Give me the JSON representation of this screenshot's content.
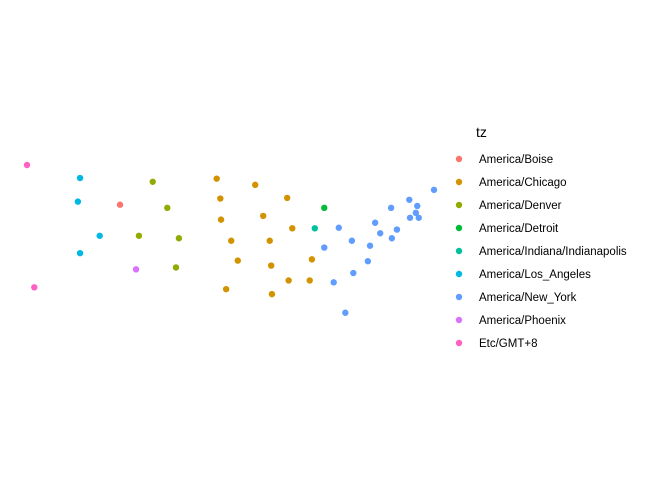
{
  "chart_data": {
    "type": "scatter",
    "title": "",
    "xlabel": "",
    "ylabel": "",
    "grid": false,
    "axes_visible": false,
    "xlim": [
      -125,
      -69
    ],
    "ylim": [
      26,
      50
    ],
    "legend": {
      "title": "tz",
      "placement": "right"
    },
    "series": [
      {
        "name": "America/Boise",
        "color": "#F8766D",
        "points": [
          [
            -112.2,
            43.6
          ]
        ]
      },
      {
        "name": "America/Chicago",
        "color": "#D39200",
        "points": [
          [
            -98.9,
            47.8
          ],
          [
            -93.6,
            46.8
          ],
          [
            -98.4,
            44.6
          ],
          [
            -89.2,
            44.7
          ],
          [
            -98.3,
            41.2
          ],
          [
            -92.5,
            41.8
          ],
          [
            -88.5,
            39.8
          ],
          [
            -96.9,
            37.8
          ],
          [
            -91.6,
            37.8
          ],
          [
            -96.0,
            34.6
          ],
          [
            -91.4,
            33.8
          ],
          [
            -85.8,
            34.8
          ],
          [
            -97.6,
            30.0
          ],
          [
            -89.0,
            31.4
          ],
          [
            -86.1,
            31.4
          ],
          [
            -91.3,
            29.2
          ]
        ]
      },
      {
        "name": "America/Denver",
        "color": "#93AA00",
        "points": [
          [
            -107.7,
            47.3
          ],
          [
            -105.7,
            43.1
          ],
          [
            -109.6,
            38.6
          ],
          [
            -104.1,
            38.2
          ],
          [
            -104.5,
            33.5
          ]
        ]
      },
      {
        "name": "America/Detroit",
        "color": "#00BA38",
        "points": [
          [
            -84.1,
            43.1
          ]
        ]
      },
      {
        "name": "America/Indiana/Indianapolis",
        "color": "#00C19F",
        "points": [
          [
            -85.4,
            39.8
          ]
        ]
      },
      {
        "name": "America/Los_Angeles",
        "color": "#00B9E3",
        "points": [
          [
            -117.7,
            47.9
          ],
          [
            -118.0,
            44.1
          ],
          [
            -115.0,
            38.6
          ],
          [
            -117.7,
            35.8
          ]
        ]
      },
      {
        "name": "America/New_York",
        "color": "#619CFF",
        "points": [
          [
            -69.0,
            46.0
          ],
          [
            -72.4,
            44.4
          ],
          [
            -74.9,
            43.1
          ],
          [
            -71.3,
            43.4
          ],
          [
            -71.5,
            42.3
          ],
          [
            -72.3,
            41.5
          ],
          [
            -71.1,
            41.5
          ],
          [
            -77.1,
            40.7
          ],
          [
            -82.1,
            39.9
          ],
          [
            -74.1,
            39.6
          ],
          [
            -80.3,
            37.8
          ],
          [
            -76.4,
            39.0
          ],
          [
            -74.8,
            38.2
          ],
          [
            -84.1,
            36.7
          ],
          [
            -77.8,
            37.0
          ],
          [
            -78.1,
            34.5
          ],
          [
            -80.1,
            32.6
          ],
          [
            -82.8,
            31.1
          ],
          [
            -81.2,
            26.2
          ]
        ]
      },
      {
        "name": "America/Phoenix",
        "color": "#DB72FB",
        "points": [
          [
            -110.0,
            33.2
          ]
        ]
      },
      {
        "name": "Etc/GMT+8",
        "color": "#FF61C3",
        "points": [
          [
            -125.0,
            50.0
          ],
          [
            -124.0,
            30.3
          ]
        ]
      }
    ]
  }
}
